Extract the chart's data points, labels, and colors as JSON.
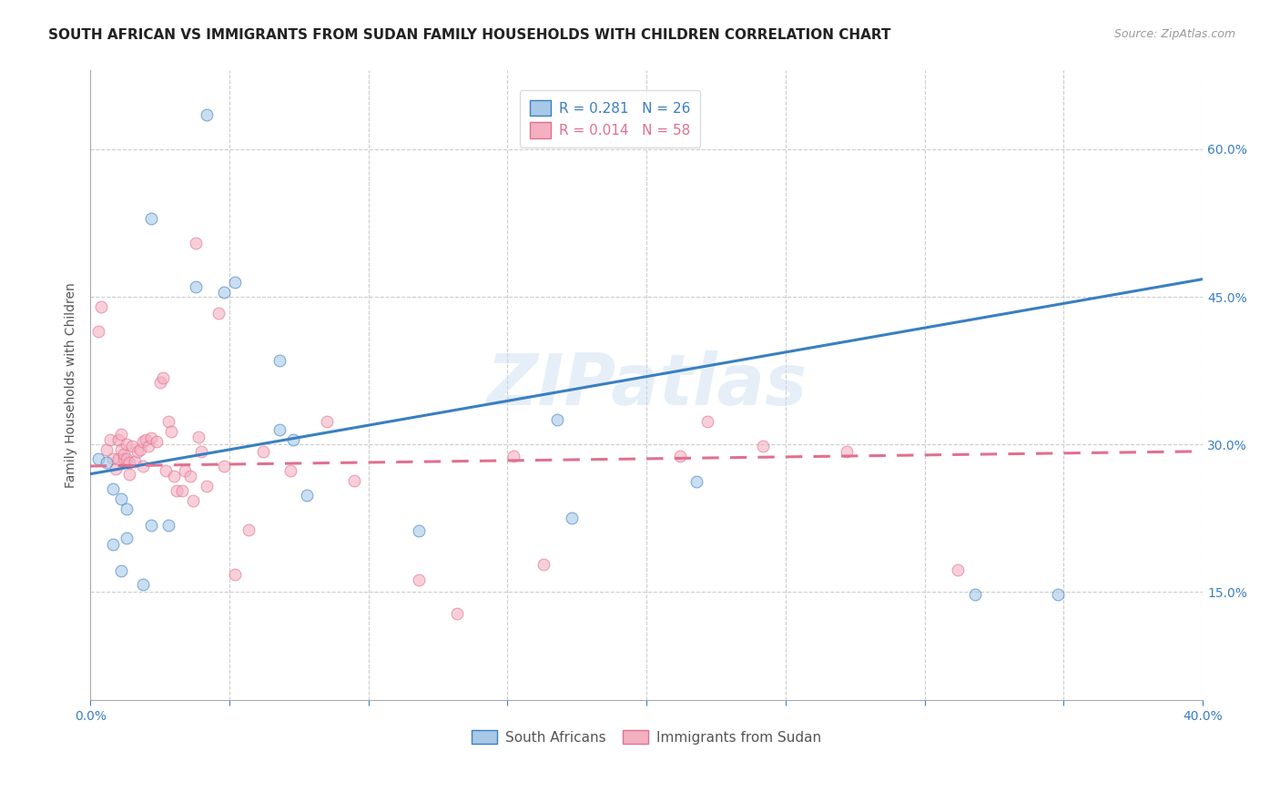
{
  "title": "SOUTH AFRICAN VS IMMIGRANTS FROM SUDAN FAMILY HOUSEHOLDS WITH CHILDREN CORRELATION CHART",
  "source": "Source: ZipAtlas.com",
  "ylabel": "Family Households with Children",
  "xlim": [
    0.0,
    0.4
  ],
  "ylim": [
    0.04,
    0.68
  ],
  "xticks": [
    0.0,
    0.05,
    0.1,
    0.15,
    0.2,
    0.25,
    0.3,
    0.35,
    0.4
  ],
  "xtick_labels": [
    "0.0%",
    "",
    "",
    "",
    "",
    "",
    "",
    "",
    "40.0%"
  ],
  "ytick_positions": [
    0.15,
    0.3,
    0.45,
    0.6
  ],
  "ytick_labels": [
    "15.0%",
    "30.0%",
    "45.0%",
    "60.0%"
  ],
  "watermark": "ZIPatlas",
  "blue_line_color": "#3a7fc1",
  "pink_line_color": "#e07090",
  "blue_scatter_color": "#a8c8e8",
  "pink_scatter_color": "#f4afc0",
  "south_africans_x": [
    0.003,
    0.022,
    0.042,
    0.038,
    0.052,
    0.048,
    0.068,
    0.068,
    0.073,
    0.006,
    0.008,
    0.011,
    0.013,
    0.013,
    0.008,
    0.011,
    0.019,
    0.022,
    0.028,
    0.078,
    0.118,
    0.168,
    0.173,
    0.218,
    0.348,
    0.318
  ],
  "south_africans_y": [
    0.285,
    0.53,
    0.635,
    0.46,
    0.465,
    0.455,
    0.385,
    0.315,
    0.305,
    0.282,
    0.255,
    0.245,
    0.235,
    0.205,
    0.198,
    0.172,
    0.158,
    0.218,
    0.218,
    0.248,
    0.212,
    0.325,
    0.225,
    0.262,
    0.148,
    0.148
  ],
  "immigrants_x": [
    0.003,
    0.004,
    0.006,
    0.007,
    0.008,
    0.009,
    0.01,
    0.01,
    0.011,
    0.011,
    0.012,
    0.012,
    0.013,
    0.013,
    0.014,
    0.014,
    0.015,
    0.016,
    0.017,
    0.018,
    0.019,
    0.019,
    0.02,
    0.021,
    0.022,
    0.024,
    0.025,
    0.026,
    0.027,
    0.028,
    0.029,
    0.03,
    0.031,
    0.033,
    0.034,
    0.036,
    0.037,
    0.038,
    0.039,
    0.04,
    0.042,
    0.046,
    0.048,
    0.052,
    0.057,
    0.062,
    0.072,
    0.085,
    0.095,
    0.118,
    0.132,
    0.152,
    0.163,
    0.212,
    0.222,
    0.242,
    0.272,
    0.312
  ],
  "immigrants_y": [
    0.415,
    0.44,
    0.295,
    0.305,
    0.285,
    0.275,
    0.285,
    0.305,
    0.31,
    0.295,
    0.285,
    0.29,
    0.3,
    0.285,
    0.282,
    0.27,
    0.298,
    0.283,
    0.293,
    0.295,
    0.303,
    0.278,
    0.305,
    0.298,
    0.307,
    0.303,
    0.363,
    0.368,
    0.273,
    0.323,
    0.313,
    0.268,
    0.253,
    0.253,
    0.273,
    0.268,
    0.243,
    0.505,
    0.308,
    0.293,
    0.258,
    0.433,
    0.278,
    0.168,
    0.213,
    0.293,
    0.273,
    0.323,
    0.263,
    0.162,
    0.128,
    0.288,
    0.178,
    0.288,
    0.323,
    0.298,
    0.293,
    0.173
  ],
  "blue_line_x": [
    0.0,
    0.4
  ],
  "blue_line_y": [
    0.27,
    0.468
  ],
  "pink_line_x": [
    0.0,
    0.4
  ],
  "pink_line_y": [
    0.278,
    0.293
  ],
  "grid_color": "#cccccc",
  "background_color": "#ffffff",
  "title_fontsize": 11,
  "axis_label_fontsize": 10,
  "tick_fontsize": 10,
  "legend_fontsize": 11,
  "dot_size": 85,
  "dot_alpha": 0.6,
  "line_width": 2.2
}
